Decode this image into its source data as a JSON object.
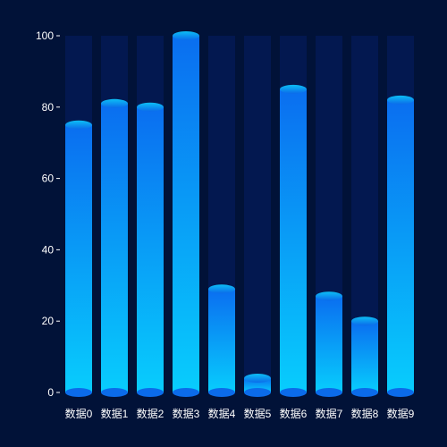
{
  "colors": {
    "background": "#011238",
    "track": "#031850",
    "bar_top_color": "#0a6ef0",
    "bar_bottom_color": "#08cdfd",
    "cap_top_color": "#0cbef5",
    "cap_bottom_color": "#0b6bea",
    "axis_text": "#ffffff"
  },
  "chart_data": {
    "type": "bar",
    "categories": [
      "数据0",
      "数据1",
      "数据2",
      "数据3",
      "数据4",
      "数据5",
      "数据6",
      "数据7",
      "数据8",
      "数据9"
    ],
    "values": [
      75,
      81,
      80,
      100,
      29,
      4,
      85,
      27,
      20,
      82
    ],
    "ylim": [
      0,
      100
    ],
    "yticks": [
      0,
      20,
      40,
      60,
      80,
      100
    ],
    "background_track_value": 100,
    "grid": false,
    "legend": "none",
    "style": "3d-cylinder"
  }
}
